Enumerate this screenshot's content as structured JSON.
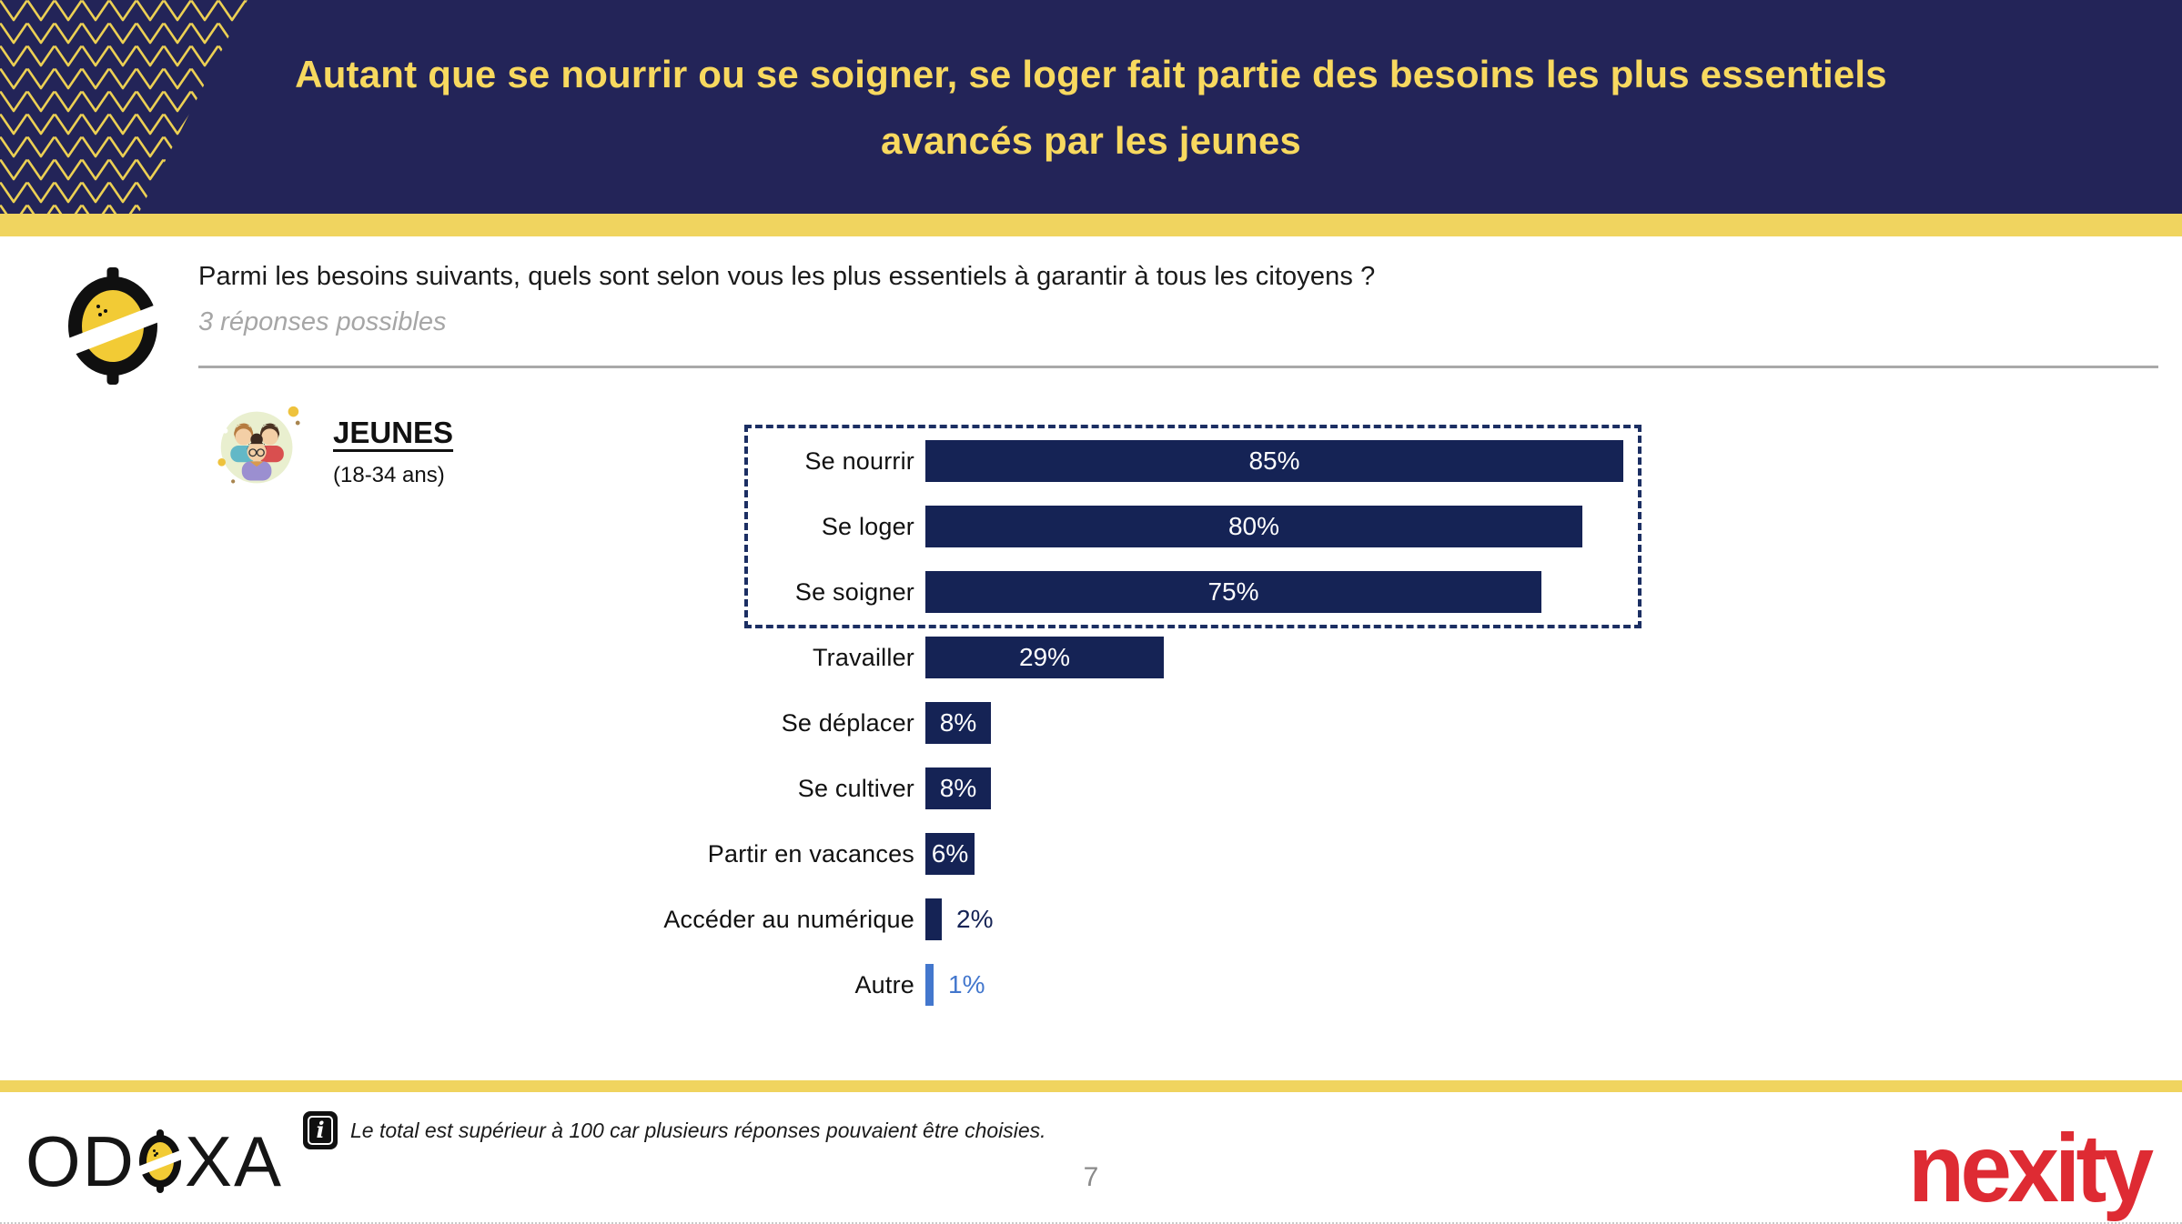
{
  "slide": {
    "title_line1": "Autant que se nourrir ou se soigner, se loger fait partie des besoins les plus essentiels",
    "title_line2": "avancés par les jeunes",
    "page_number": "7"
  },
  "question": {
    "text": "Parmi les besoins suivants, quels sont selon vous les plus essentiels à garantir à tous les citoyens ?",
    "instruction": "3 réponses possibles"
  },
  "population": {
    "label": "JEUNES",
    "age_range": "(18-34 ans)"
  },
  "chart_data": {
    "type": "bar",
    "orientation": "horizontal",
    "categories": [
      "Se nourrir",
      "Se loger",
      "Se soigner",
      "Travailler",
      "Se déplacer",
      "Se cultiver",
      "Partir en vacances",
      "Accéder au numérique",
      "Autre"
    ],
    "values": [
      85,
      80,
      75,
      29,
      8,
      8,
      6,
      2,
      1
    ],
    "value_labels": [
      "85%",
      "80%",
      "75%",
      "29%",
      "8%",
      "8%",
      "6%",
      "2%",
      "1%"
    ],
    "unit": "%",
    "xlim": [
      0,
      100
    ],
    "grid": false,
    "legend": false,
    "highlighted_categories": [
      "Se nourrir",
      "Se loger",
      "Se soigner"
    ],
    "bar_color": "#152355",
    "autre_bar_color": "#4377cd"
  },
  "footer": {
    "note": "Le total est supérieur à 100 car plusieurs réponses pouvaient être choisies.",
    "brand_left": "ODOXA",
    "odoxa_left": "OD",
    "odoxa_right": "XA",
    "brand_right": "nexity"
  },
  "colors": {
    "header_bg": "#232458",
    "accent_yellow": "#f0d45f",
    "title_yellow": "#f8d95f",
    "bar_navy": "#152355",
    "autre_blue": "#4377cd",
    "muted_gray": "#a6a6a6",
    "nexity_red": "#de2b33",
    "text_dark": "#1a1a1a"
  }
}
